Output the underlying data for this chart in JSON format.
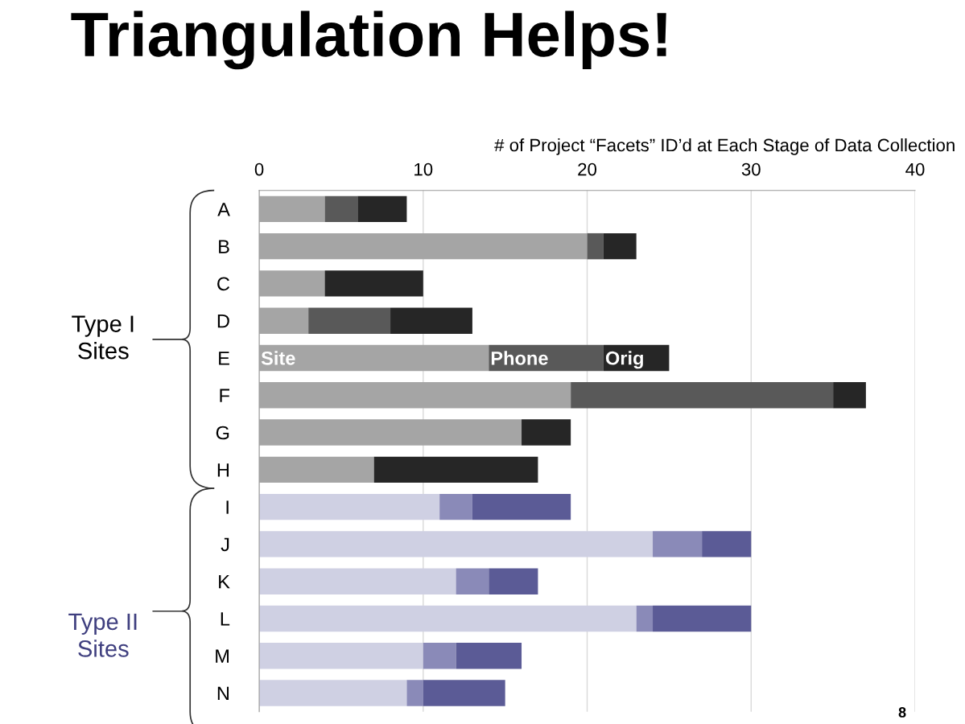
{
  "chart_data": {
    "type": "bar",
    "orientation": "horizontal",
    "stacked": true,
    "title": "Triangulation Helps!",
    "xlabel": "# of Project “Facets” ID’d at Each Stage of Data Collection",
    "categories": [
      "A",
      "B",
      "C",
      "D",
      "E",
      "F",
      "G",
      "H",
      "I",
      "J",
      "K",
      "L",
      "M",
      "N"
    ],
    "series": [
      {
        "colors": [
          "#a5a5a5",
          "#a5a5a5",
          "#a5a5a5",
          "#a5a5a5",
          "#a5a5a5",
          "#a5a5a5",
          "#a5a5a5",
          "#a5a5a5",
          "#cfd0e3",
          "#cfd0e3",
          "#cfd0e3",
          "#cfd0e3",
          "#cfd0e3",
          "#cfd0e3"
        ],
        "values": [
          4,
          20,
          4,
          3,
          14,
          19,
          16,
          7,
          11,
          24,
          12,
          23,
          10,
          9
        ]
      },
      {
        "colors": [
          "#595959",
          "#595959",
          "#595959",
          "#595959",
          "#595959",
          "#595959",
          "#595959",
          "#595959",
          "#8a8ab8",
          "#8a8ab8",
          "#8a8ab8",
          "#8a8ab8",
          "#8a8ab8",
          "#8a8ab8"
        ],
        "values": [
          2,
          1,
          0,
          5,
          7,
          16,
          0,
          0,
          2,
          3,
          2,
          1,
          2,
          1
        ]
      },
      {
        "colors": [
          "#262626",
          "#262626",
          "#262626",
          "#262626",
          "#262626",
          "#262626",
          "#262626",
          "#262626",
          "#5b5b96",
          "#5b5b96",
          "#5b5b96",
          "#5b5b96",
          "#5b5b96",
          "#5b5b96"
        ],
        "values": [
          3,
          2,
          6,
          5,
          4,
          2,
          3,
          10,
          6,
          3,
          3,
          6,
          4,
          5
        ]
      }
    ],
    "xlim": [
      0,
      40
    ],
    "xticks": [
      0,
      10,
      20,
      30,
      40
    ],
    "grid": "x",
    "annotations": [
      {
        "text": "Site",
        "x": 0,
        "y": "E"
      },
      {
        "text": "Phone",
        "x": 14,
        "y": "E"
      },
      {
        "text": "Orig",
        "x": 21,
        "y": "E"
      },
      "Type I\nSites",
      "Type II\nSites",
      "8"
    ]
  }
}
